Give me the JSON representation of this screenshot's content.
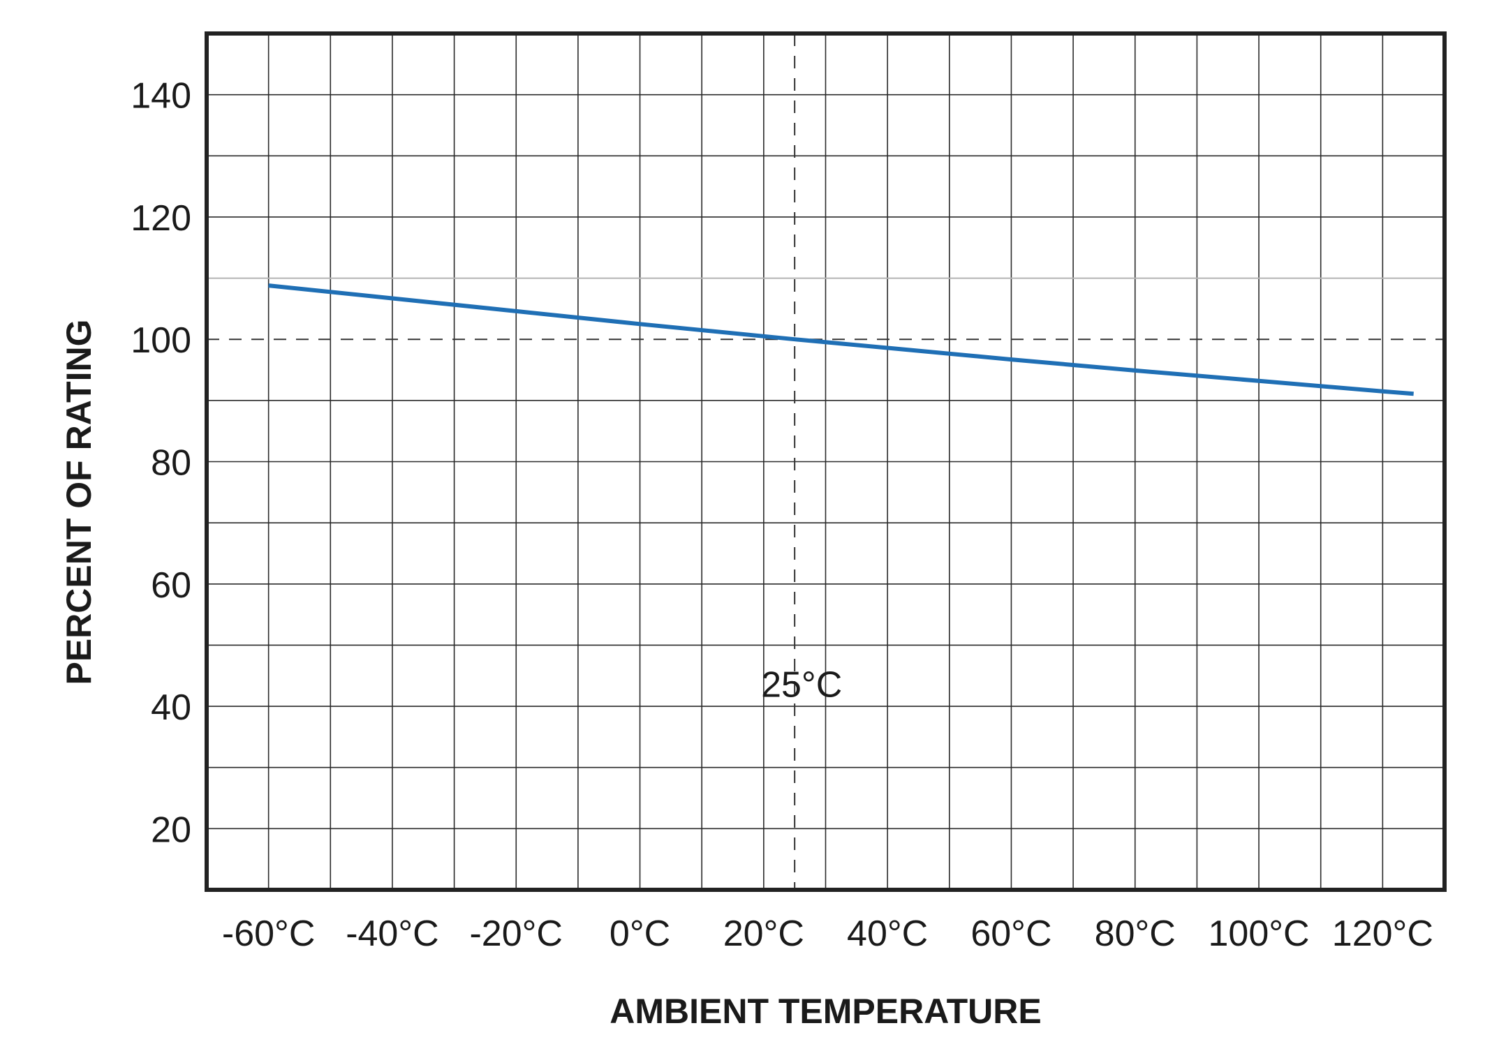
{
  "chart_data": {
    "type": "line",
    "title": "",
    "xlabel": "AMBIENT TEMPERATURE",
    "ylabel": "PERCENT OF RATING",
    "xlim": [
      -70,
      130
    ],
    "ylim": [
      10,
      150
    ],
    "grid": true,
    "x_grid_step": 10,
    "y_grid_step": 10,
    "x_ticks": [
      -60,
      -40,
      -20,
      0,
      20,
      40,
      60,
      80,
      100,
      120
    ],
    "x_tick_labels": [
      "-60°C",
      "-40°C",
      "-20°C",
      "0°C",
      "20°C",
      "40°C",
      "60°C",
      "80°C",
      "100°C",
      "120°C"
    ],
    "y_ticks": [
      20,
      40,
      60,
      80,
      100,
      120,
      140
    ],
    "y_tick_labels": [
      "20",
      "40",
      "60",
      "80",
      "100",
      "120",
      "140"
    ],
    "series": [
      {
        "color": "#1f6fb5",
        "points": [
          {
            "x": -60,
            "y": 108.8
          },
          {
            "x": -40,
            "y": 106.7
          },
          {
            "x": -20,
            "y": 104.6
          },
          {
            "x": 0,
            "y": 102.5
          },
          {
            "x": 20,
            "y": 100.5
          },
          {
            "x": 25,
            "y": 100.0
          },
          {
            "x": 40,
            "y": 98.6
          },
          {
            "x": 60,
            "y": 96.7
          },
          {
            "x": 80,
            "y": 94.9
          },
          {
            "x": 100,
            "y": 93.2
          },
          {
            "x": 120,
            "y": 91.5
          },
          {
            "x": 125,
            "y": 91.1
          }
        ]
      }
    ],
    "reference_lines": [
      {
        "axis": "x",
        "value": 25,
        "style": "dashed"
      },
      {
        "axis": "y",
        "value": 100,
        "style": "dashed"
      },
      {
        "axis": "y",
        "value": 110,
        "style": "light"
      }
    ],
    "annotations": [
      {
        "text": "25°C",
        "x": 25,
        "y": 45
      }
    ]
  }
}
